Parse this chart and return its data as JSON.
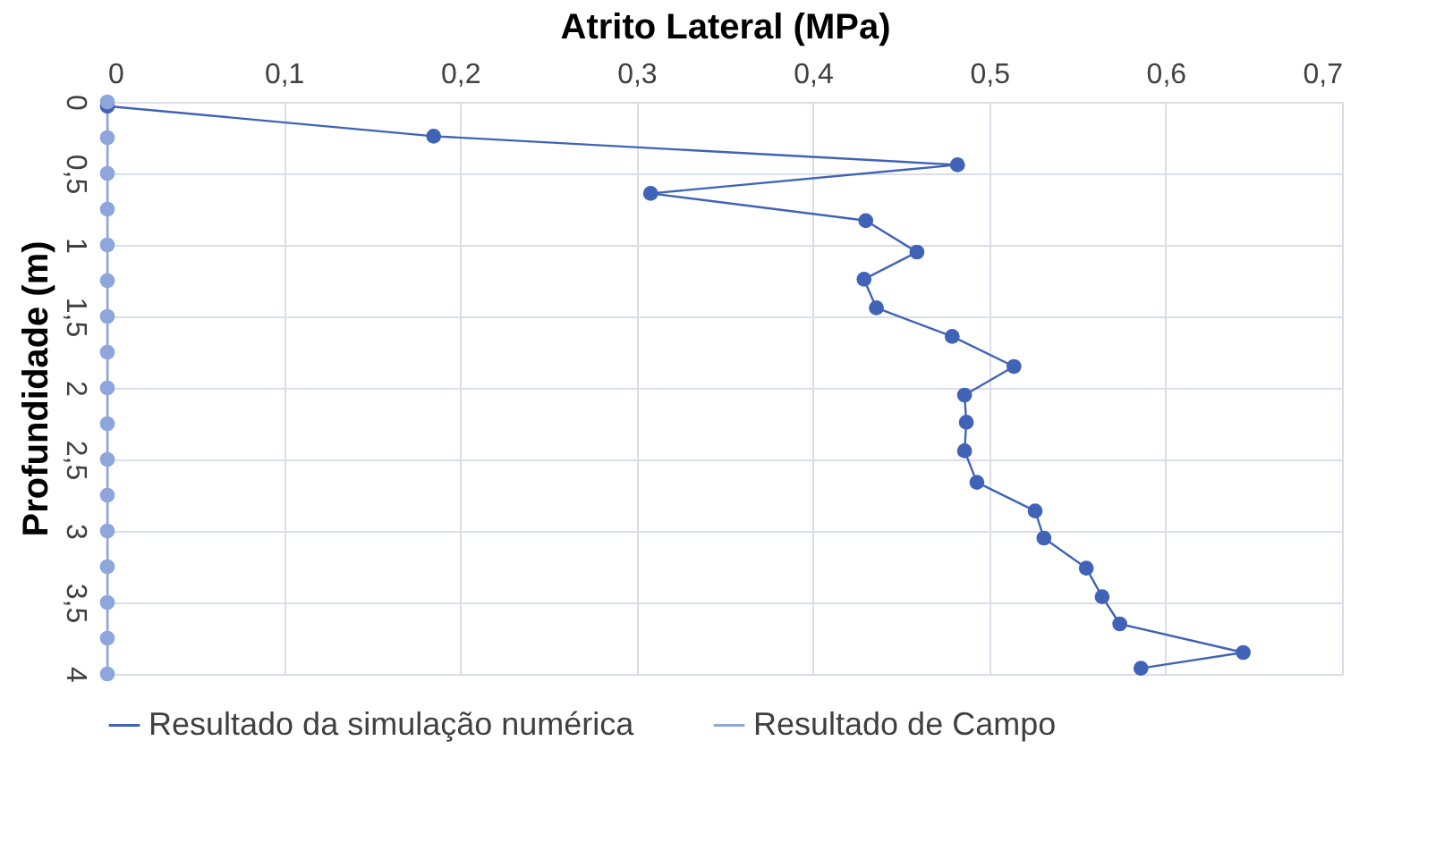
{
  "chart_data": {
    "type": "line",
    "xlabel": "Atrito Lateral (MPa)",
    "ylabel": "Profundidade (m)",
    "xlim": [
      0,
      0.7
    ],
    "xticks": [
      0,
      {
        "value": 0.1,
        "label": "0,1"
      },
      {
        "value": 0.2,
        "label": "0,2"
      },
      {
        "value": 0.3,
        "label": "0,3"
      },
      {
        "value": 0.4,
        "label": "0,4"
      },
      {
        "value": 0.5,
        "label": "0,5"
      },
      {
        "value": 0.6,
        "label": "0,6"
      },
      {
        "value": 0.7,
        "label": "0,7"
      }
    ],
    "ylim": [
      4,
      0
    ],
    "yticks": [
      0,
      {
        "value": 0.5,
        "label": "0,5"
      },
      1,
      {
        "value": 1.5,
        "label": "1,5"
      },
      2,
      {
        "value": 2.5,
        "label": "2,5"
      },
      3,
      {
        "value": 3.5,
        "label": "3,5"
      },
      4
    ],
    "grid": true,
    "legend": "bottom",
    "marker": "circle",
    "line_style": "solid",
    "series": [
      {
        "name": "Resultado da simulação numérica",
        "color": "#4063b8",
        "x": [
          0,
          0.185,
          0.482,
          0.308,
          0.43,
          0.459,
          0.429,
          0.436,
          0.479,
          0.514,
          0.486,
          0.487,
          0.486,
          0.493,
          0.526,
          0.531,
          0.555,
          0.564,
          0.574,
          0.644,
          0.586
        ],
        "values": [
          0.03,
          0.24,
          0.44,
          0.64,
          0.83,
          1.05,
          1.24,
          1.44,
          1.64,
          1.85,
          2.05,
          2.24,
          2.44,
          2.66,
          2.86,
          3.05,
          3.26,
          3.46,
          3.65,
          3.85,
          3.96
        ]
      },
      {
        "name": "Resultado de Campo",
        "color": "#8fa6dc",
        "x": [
          0,
          0,
          0,
          0,
          0,
          0,
          0,
          0,
          0,
          0,
          0,
          0,
          0,
          0,
          0,
          0,
          0
        ],
        "values": [
          0,
          0.25,
          0.5,
          0.75,
          1,
          1.25,
          1.5,
          1.75,
          2,
          2.25,
          2.5,
          2.75,
          3,
          3.25,
          3.5,
          3.75,
          4
        ]
      }
    ]
  }
}
